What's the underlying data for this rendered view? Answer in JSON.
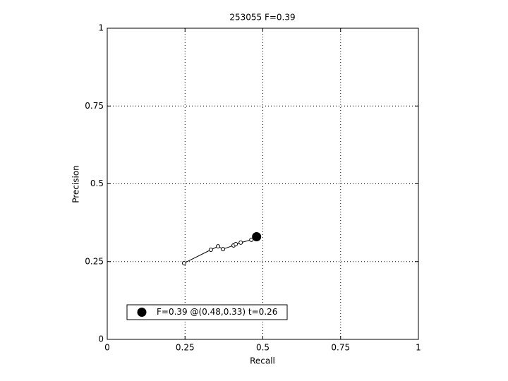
{
  "chart_data": {
    "type": "line",
    "title": "253055 F=0.39",
    "xlabel": "Recall",
    "ylabel": "Precision",
    "xlim": [
      0,
      1
    ],
    "ylim": [
      0,
      1
    ],
    "xticks": [
      0,
      0.25,
      0.5,
      0.75,
      1
    ],
    "yticks": [
      0,
      0.25,
      0.5,
      0.75,
      1
    ],
    "grid": true,
    "legend": "lower left",
    "series": [
      {
        "x": [
          0.247,
          0.333,
          0.356,
          0.372,
          0.406,
          0.413,
          0.429,
          0.463
        ],
        "values": [
          0.245,
          0.288,
          0.299,
          0.29,
          0.302,
          0.306,
          0.311,
          0.32
        ],
        "color": "#000000",
        "marker": "open"
      },
      {
        "name": "F=0.39 @(0.48,0.33) t=0.26",
        "x": [
          0.48
        ],
        "values": [
          0.33
        ],
        "color": "#000000",
        "marker": "big"
      }
    ]
  }
}
